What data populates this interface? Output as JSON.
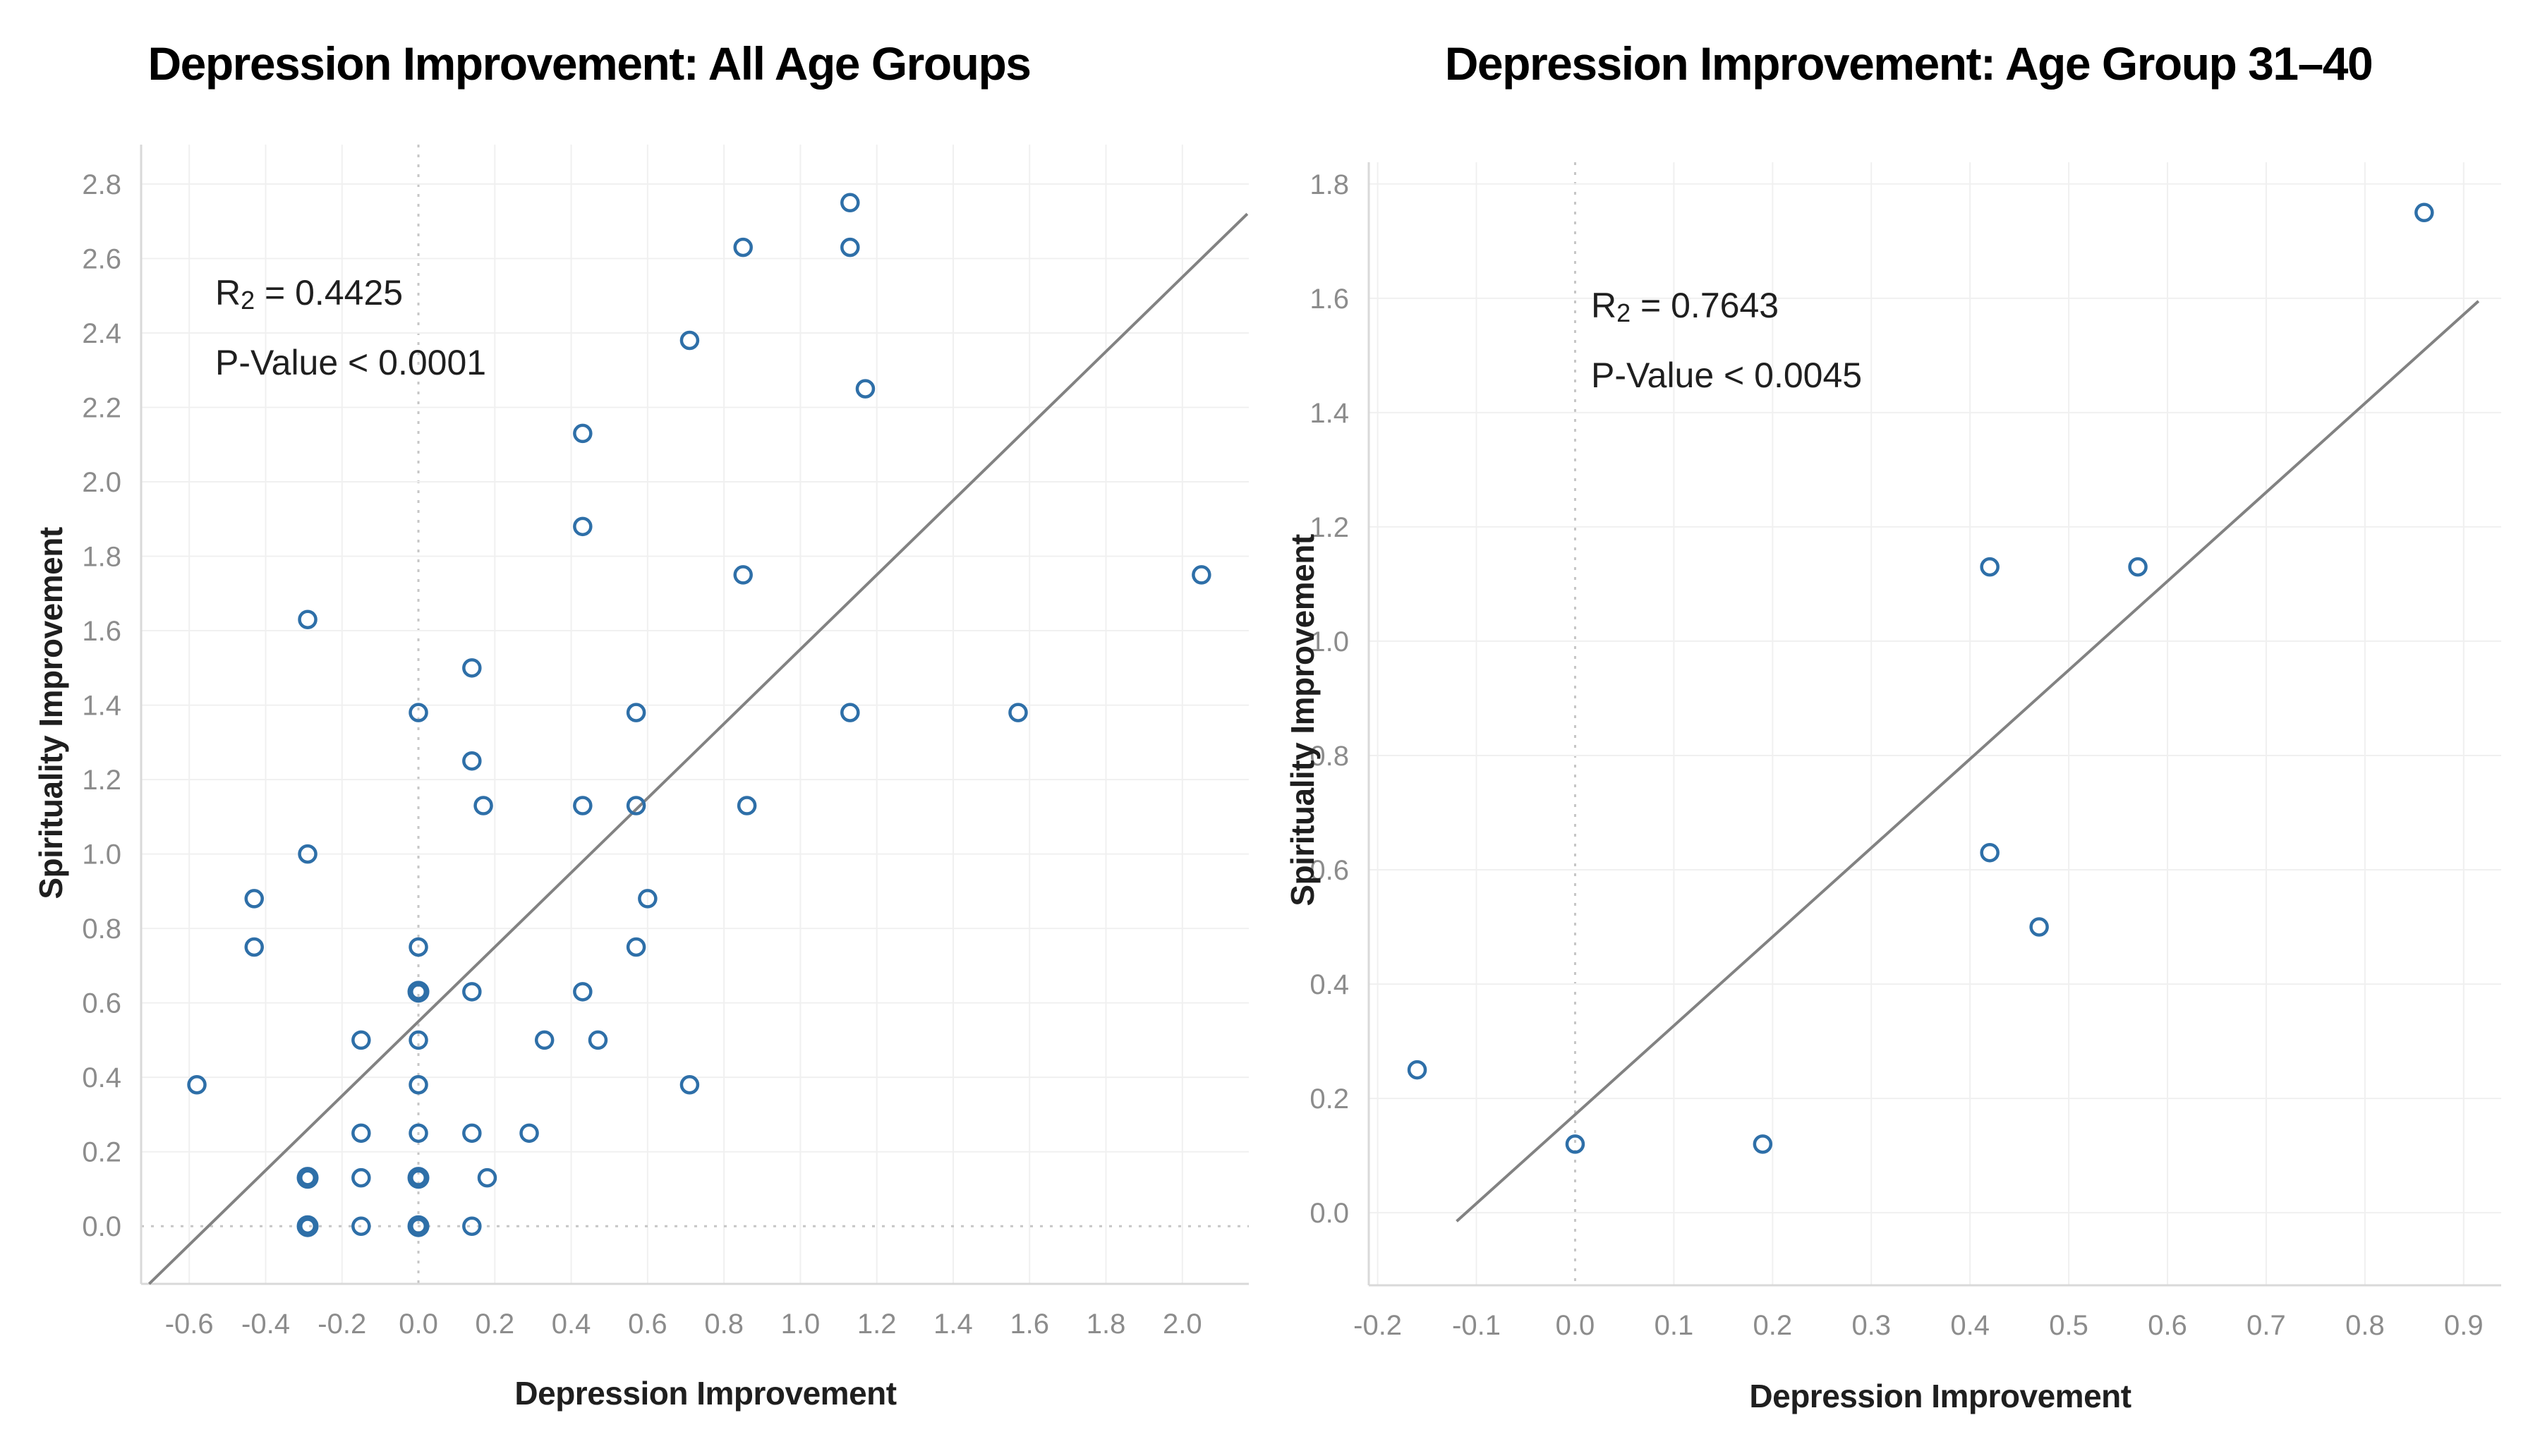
{
  "chart_data": [
    {
      "type": "scatter",
      "title": "Depression Improvement: All Age Groups",
      "xlabel": "Depression Improvement",
      "ylabel": "Spirituality Improvement",
      "stats": {
        "r2_label": "R",
        "r2_sub": "2",
        "r2_value": " = 0.4425",
        "p_value": "P-Value < 0.0001"
      },
      "x_ticks": [
        "-0.6",
        "-0.4",
        "-0.2",
        "0.0",
        "0.2",
        "0.4",
        "0.6",
        "0.8",
        "1.0",
        "1.2",
        "1.4",
        "1.6",
        "1.8",
        "2.0"
      ],
      "y_ticks": [
        "0.0",
        "0.2",
        "0.4",
        "0.6",
        "0.8",
        "1.0",
        "1.2",
        "1.4",
        "1.6",
        "1.8",
        "2.0",
        "2.2",
        "2.4",
        "2.6",
        "2.8"
      ],
      "xlim": [
        -0.726,
        2.174
      ],
      "ylim": [
        -0.155,
        2.906
      ],
      "grid": "on",
      "zero_dotted": [
        "x",
        "y"
      ],
      "points": [
        [
          1.13,
          2.75
        ],
        [
          0.85,
          2.63
        ],
        [
          1.13,
          2.63
        ],
        [
          0.71,
          2.38
        ],
        [
          1.17,
          2.25
        ],
        [
          0.43,
          2.13
        ],
        [
          0.43,
          1.88
        ],
        [
          0.85,
          1.75
        ],
        [
          2.05,
          1.75
        ],
        [
          -0.29,
          1.63
        ],
        [
          0.14,
          1.5
        ],
        [
          0.0,
          1.38
        ],
        [
          0.57,
          1.38
        ],
        [
          1.13,
          1.38
        ],
        [
          1.57,
          1.38
        ],
        [
          0.14,
          1.25
        ],
        [
          0.17,
          1.13
        ],
        [
          0.43,
          1.13
        ],
        [
          0.57,
          1.13
        ],
        [
          0.86,
          1.13
        ],
        [
          -0.29,
          1.0
        ],
        [
          -0.43,
          0.88
        ],
        [
          0.6,
          0.88
        ],
        [
          -0.43,
          0.75
        ],
        [
          0.0,
          0.75
        ],
        [
          0.57,
          0.75
        ],
        [
          0.0,
          0.63
        ],
        [
          0.0,
          0.63
        ],
        [
          0.14,
          0.63
        ],
        [
          0.43,
          0.63
        ],
        [
          -0.15,
          0.5
        ],
        [
          0.0,
          0.5
        ],
        [
          0.33,
          0.5
        ],
        [
          0.47,
          0.5
        ],
        [
          -0.58,
          0.38
        ],
        [
          0.0,
          0.38
        ],
        [
          0.71,
          0.38
        ],
        [
          -0.15,
          0.25
        ],
        [
          0.0,
          0.25
        ],
        [
          0.14,
          0.25
        ],
        [
          0.29,
          0.25
        ],
        [
          -0.29,
          0.13
        ],
        [
          -0.29,
          0.13
        ],
        [
          -0.15,
          0.13
        ],
        [
          0.0,
          0.13
        ],
        [
          0.0,
          0.13
        ],
        [
          0.18,
          0.13
        ],
        [
          -0.29,
          0.0
        ],
        [
          -0.29,
          0.0
        ],
        [
          -0.15,
          0.0
        ],
        [
          0.0,
          0.0
        ],
        [
          0.0,
          0.0
        ],
        [
          0.14,
          0.0
        ]
      ],
      "trend": {
        "x1": -0.705,
        "y1": -0.155,
        "x2": 2.17,
        "y2": 2.72
      },
      "marker_color": "#2e6fa8",
      "trend_color": "#828282"
    },
    {
      "type": "scatter",
      "title": "Depression Improvement: Age Group 31–40",
      "xlabel": "Depression Improvement",
      "ylabel": "Spirituality Improvement",
      "stats": {
        "r2_label": "R",
        "r2_sub": "2",
        "r2_value": " = 0.7643",
        "p_value": "P-Value < 0.0045"
      },
      "x_ticks": [
        "-0.2",
        "-0.1",
        "0.0",
        "0.1",
        "0.2",
        "0.3",
        "0.4",
        "0.5",
        "0.6",
        "0.7",
        "0.8",
        "0.9"
      ],
      "y_ticks": [
        "0.0",
        "0.2",
        "0.4",
        "0.6",
        "0.8",
        "1.0",
        "1.2",
        "1.4",
        "1.6",
        "1.8"
      ],
      "xlim": [
        -0.209,
        0.938
      ],
      "ylim": [
        -0.127,
        1.838
      ],
      "grid": "on",
      "zero_dotted": [
        "x"
      ],
      "points": [
        [
          -0.16,
          0.25
        ],
        [
          0.0,
          0.12
        ],
        [
          0.19,
          0.12
        ],
        [
          0.42,
          0.63
        ],
        [
          0.47,
          0.5
        ],
        [
          0.42,
          1.13
        ],
        [
          0.57,
          1.13
        ],
        [
          0.86,
          1.75
        ]
      ],
      "trend": {
        "x1": -0.12,
        "y1": -0.015,
        "x2": 0.915,
        "y2": 1.595
      },
      "marker_color": "#2e6fa8",
      "trend_color": "#828282"
    }
  ],
  "style": {
    "gridline_color": "#f0f0f0",
    "zero_line_color": "#c6c6c6",
    "axis_line_color": "#d9d9d9",
    "tick_label_color": "#8c8c8c"
  }
}
